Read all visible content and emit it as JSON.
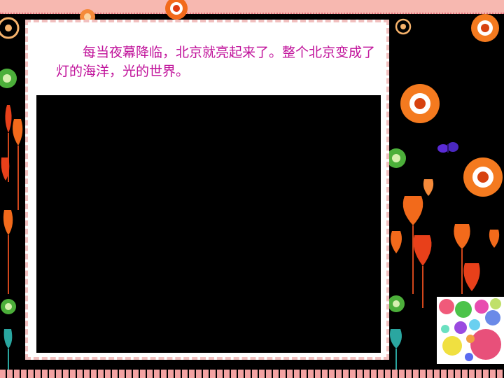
{
  "slide": {
    "text": "每当夜幕降临，北京就亮起来了。整个北京变成了灯的海洋，光的世界。"
  },
  "colors": {
    "text": "#c0119a",
    "frame_border": "#f2c0bf",
    "background": "#000000",
    "top_band": "#f7b8b0"
  },
  "icons": [
    "flower-icon",
    "tulip-icon",
    "butterfly-icon",
    "bubble-icon"
  ]
}
